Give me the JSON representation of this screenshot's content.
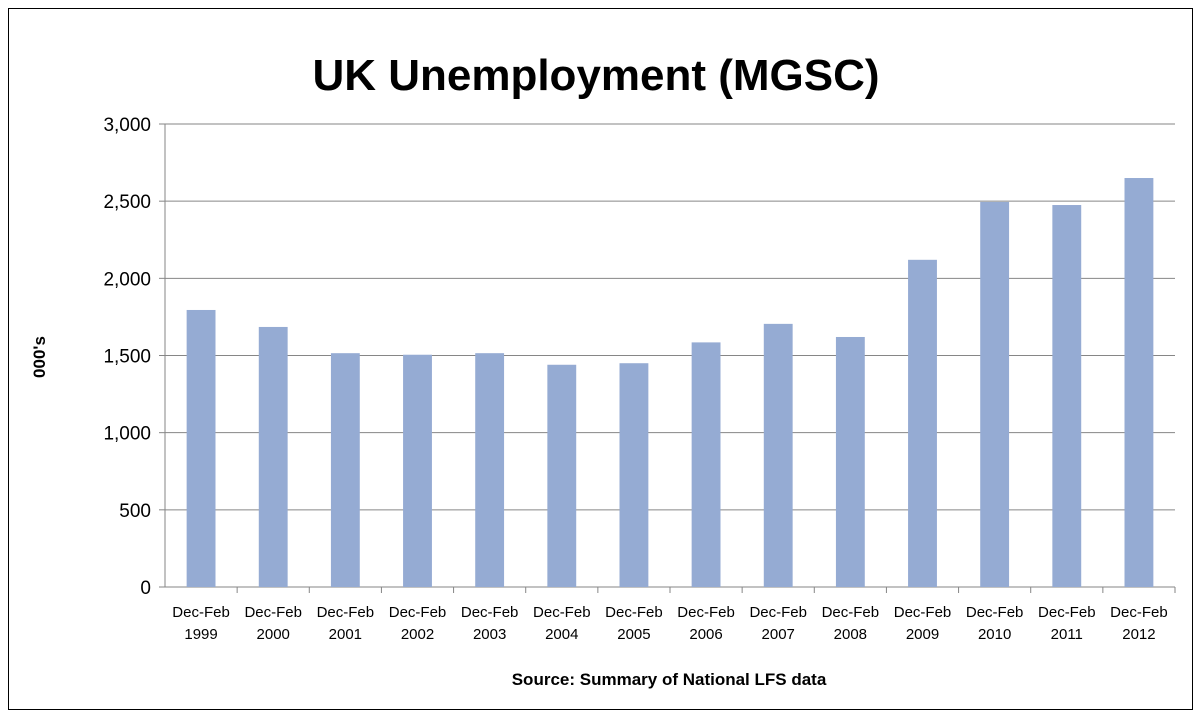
{
  "chart_data": {
    "type": "bar",
    "title": "UK Unemployment (MGSC)",
    "ylabel": "000's",
    "xlabel": "Source: Summary of National LFS data",
    "categories": [
      [
        "Dec-Feb",
        "1999"
      ],
      [
        "Dec-Feb",
        "2000"
      ],
      [
        "Dec-Feb",
        "2001"
      ],
      [
        "Dec-Feb",
        "2002"
      ],
      [
        "Dec-Feb",
        "2003"
      ],
      [
        "Dec-Feb",
        "2004"
      ],
      [
        "Dec-Feb",
        "2005"
      ],
      [
        "Dec-Feb",
        "2006"
      ],
      [
        "Dec-Feb",
        "2007"
      ],
      [
        "Dec-Feb",
        "2008"
      ],
      [
        "Dec-Feb",
        "2009"
      ],
      [
        "Dec-Feb",
        "2010"
      ],
      [
        "Dec-Feb",
        "2011"
      ],
      [
        "Dec-Feb",
        "2012"
      ]
    ],
    "values": [
      1795,
      1685,
      1515,
      1505,
      1515,
      1440,
      1450,
      1585,
      1705,
      1620,
      2120,
      2495,
      2475,
      2650
    ],
    "ylim": [
      0,
      3000
    ],
    "yticks": [
      0,
      500,
      1000,
      1500,
      2000,
      2500,
      3000
    ],
    "ytick_labels": [
      "0",
      "500",
      "1,000",
      "1,500",
      "2,000",
      "2,500",
      "3,000"
    ],
    "bar_color": "#95abd3",
    "grid": true,
    "legend": "none"
  }
}
